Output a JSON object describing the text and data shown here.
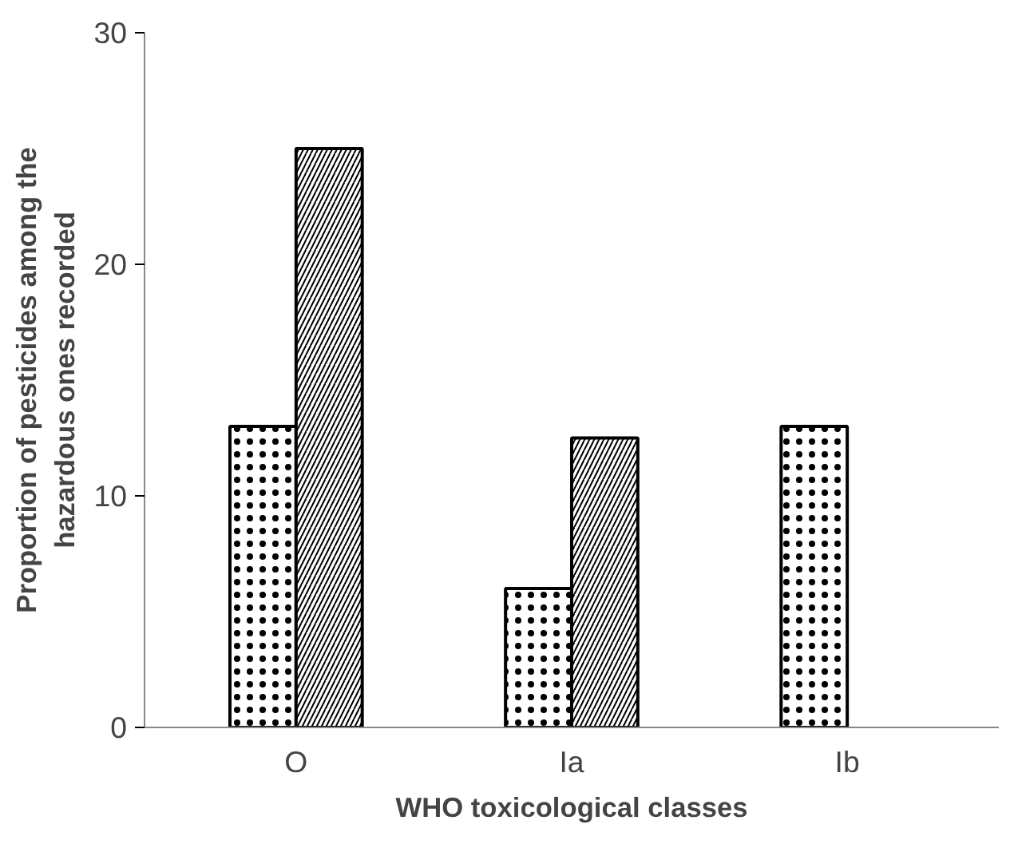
{
  "chart_data": {
    "type": "bar",
    "xlabel": "WHO toxicological classes",
    "ylabel": "Proportion of pesticides among the hazardous ones recorded",
    "categories": [
      "O",
      "Ia",
      "Ib"
    ],
    "series": [
      {
        "color": "#000000",
        "values": [
          13,
          6,
          13
        ]
      },
      {
        "color": "#000000",
        "values": [
          25,
          12.5,
          null
        ]
      }
    ],
    "ylim": [
      0,
      30
    ],
    "yticks": [
      0,
      10,
      20,
      30
    ],
    "grid": false
  }
}
